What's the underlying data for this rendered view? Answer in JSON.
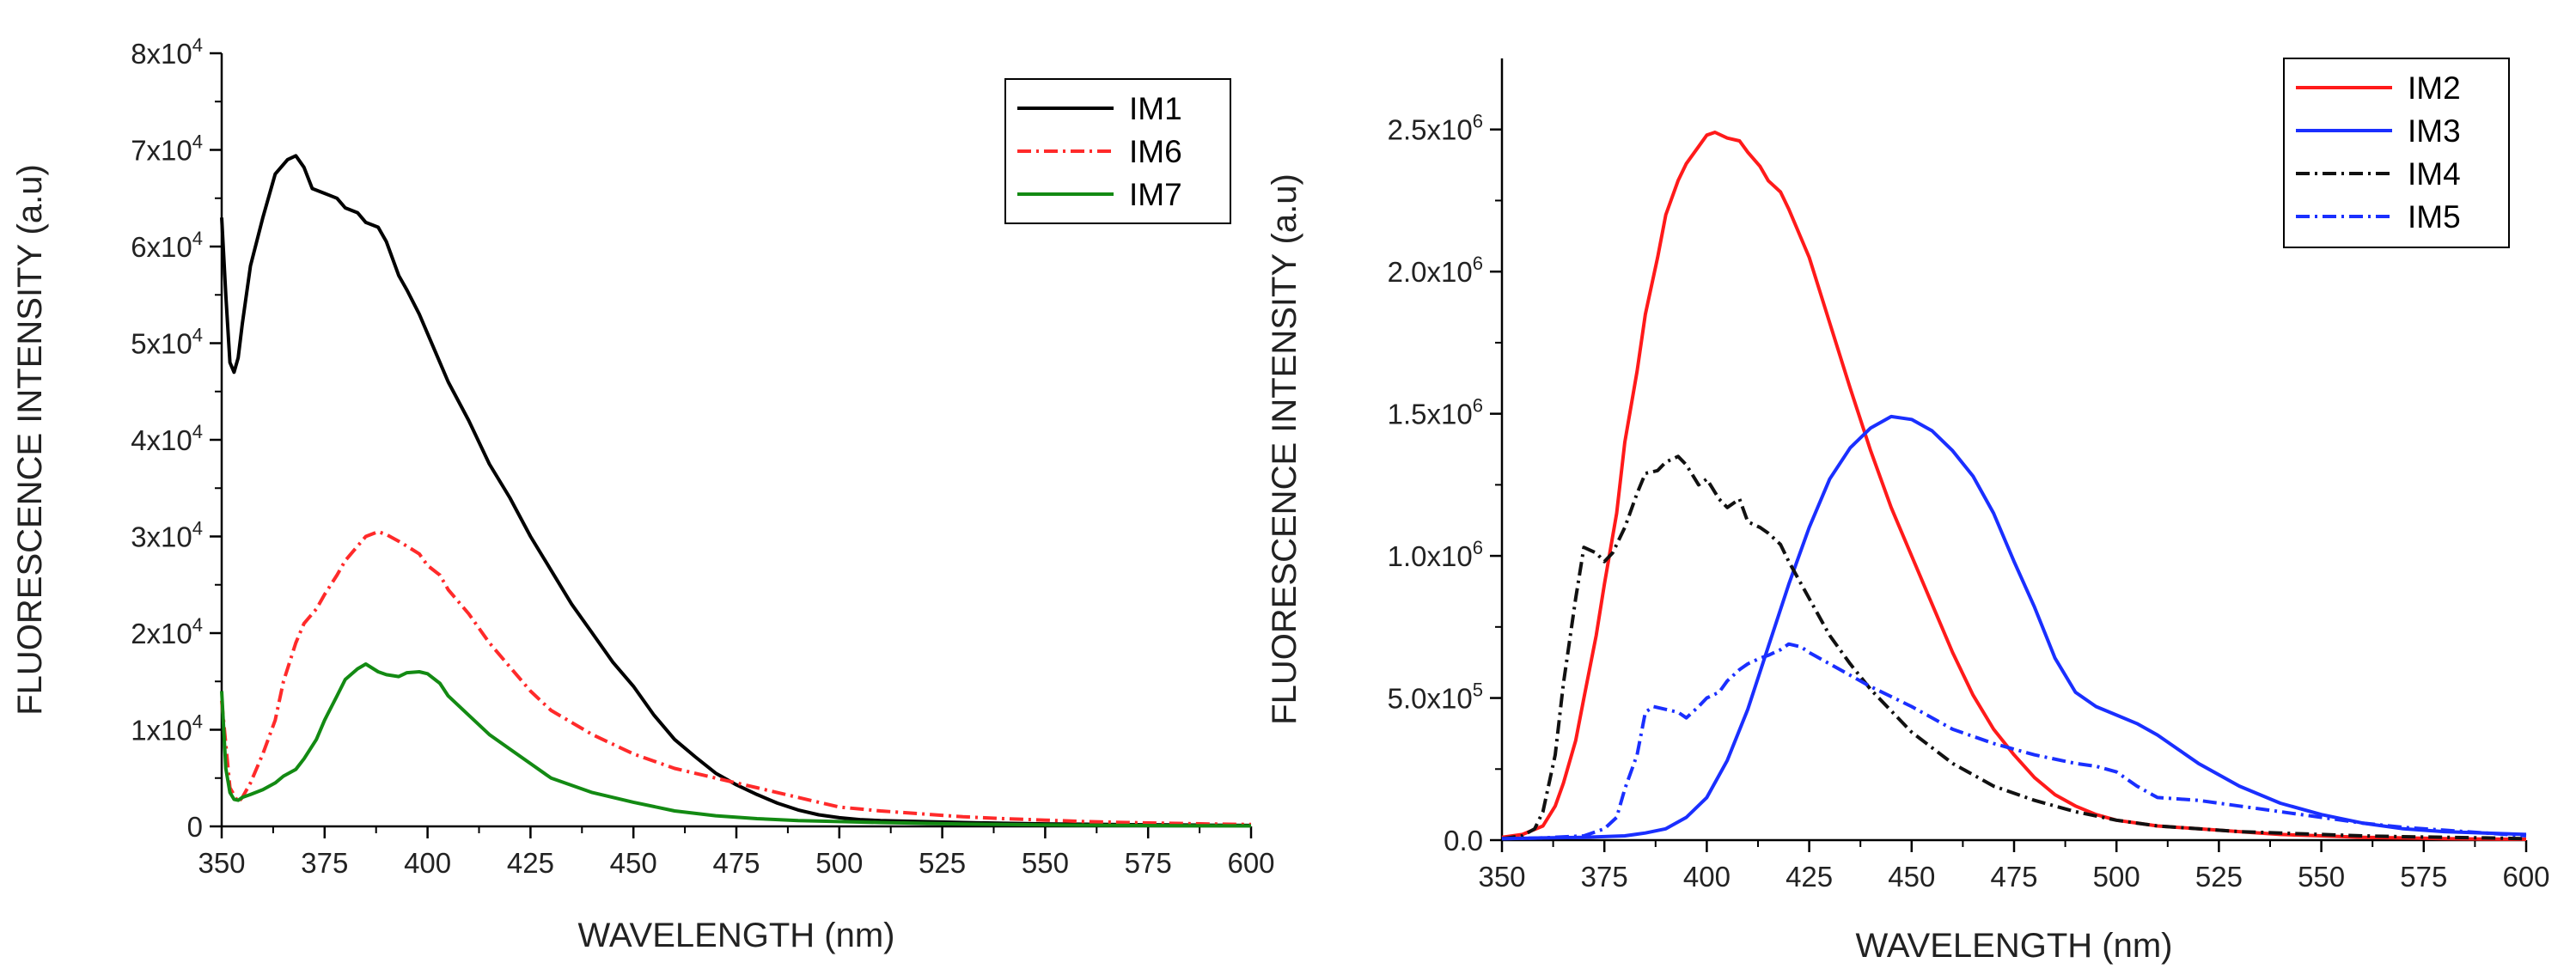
{
  "chart_data": [
    {
      "type": "line",
      "xlabel": "WAVELENGTH (nm)",
      "ylabel": "FLUORESCENCE INTENSITY (a.u)",
      "xlim": [
        350,
        600
      ],
      "ylim": [
        0,
        80000
      ],
      "xticks": [
        350,
        375,
        400,
        425,
        450,
        475,
        500,
        525,
        550,
        575,
        600
      ],
      "xtick_labels": [
        "350",
        "375",
        "400",
        "425",
        "450",
        "475",
        "500",
        "525",
        "550",
        "575",
        "600"
      ],
      "yticks": [
        {
          "value": 0,
          "base": "0",
          "exp": ""
        },
        {
          "value": 10000,
          "base": "1x10",
          "exp": "4"
        },
        {
          "value": 20000,
          "base": "2x10",
          "exp": "4"
        },
        {
          "value": 30000,
          "base": "3x10",
          "exp": "4"
        },
        {
          "value": 40000,
          "base": "4x10",
          "exp": "4"
        },
        {
          "value": 50000,
          "base": "5x10",
          "exp": "4"
        },
        {
          "value": 60000,
          "base": "6x10",
          "exp": "4"
        },
        {
          "value": 70000,
          "base": "7x10",
          "exp": "4"
        },
        {
          "value": 80000,
          "base": "8x10",
          "exp": "4"
        }
      ],
      "legend_position": "top-right",
      "series": [
        {
          "name": "IM1",
          "color": "#000000",
          "style": "solid",
          "x": [
            350,
            351,
            352,
            353,
            354,
            355,
            357,
            360,
            363,
            366,
            368,
            370,
            372,
            375,
            378,
            380,
            383,
            385,
            388,
            390,
            393,
            395,
            398,
            400,
            405,
            410,
            415,
            420,
            425,
            430,
            435,
            440,
            445,
            450,
            455,
            460,
            465,
            470,
            475,
            480,
            485,
            490,
            495,
            500,
            505,
            510,
            520,
            530,
            540,
            550,
            560,
            570,
            580,
            590,
            600
          ],
          "y": [
            63000,
            55000,
            48000,
            47000,
            48500,
            52000,
            58000,
            63000,
            67500,
            69000,
            69400,
            68200,
            66000,
            65500,
            65000,
            64000,
            63500,
            62500,
            62000,
            60500,
            57000,
            55500,
            53000,
            51000,
            46000,
            42000,
            37500,
            34000,
            30000,
            26500,
            23000,
            20000,
            17000,
            14500,
            11500,
            9000,
            7200,
            5500,
            4300,
            3300,
            2400,
            1700,
            1200,
            900,
            700,
            600,
            500,
            400,
            320,
            260,
            220,
            180,
            150,
            120,
            100
          ]
        },
        {
          "name": "IM6",
          "color": "#ff2a2a",
          "style": "dashdot",
          "x": [
            350,
            352,
            354,
            355,
            357,
            360,
            363,
            365,
            368,
            370,
            373,
            375,
            378,
            380,
            383,
            385,
            388,
            390,
            393,
            395,
            398,
            400,
            403,
            405,
            410,
            415,
            420,
            425,
            430,
            440,
            450,
            460,
            470,
            480,
            490,
            500,
            510,
            520,
            530,
            540,
            550,
            560,
            570,
            580,
            590,
            600
          ],
          "y": [
            13000,
            4000,
            2500,
            3000,
            4500,
            7500,
            11000,
            15000,
            19000,
            21000,
            22500,
            24000,
            26000,
            27500,
            29000,
            30000,
            30500,
            30200,
            29500,
            29000,
            28200,
            27000,
            26000,
            24500,
            22000,
            19000,
            16500,
            14000,
            12000,
            9500,
            7500,
            6000,
            5000,
            4000,
            3000,
            2000,
            1600,
            1300,
            1000,
            800,
            650,
            500,
            400,
            320,
            250,
            200
          ]
        },
        {
          "name": "IM7",
          "color": "#138a13",
          "style": "solid",
          "x": [
            350,
            351,
            352,
            353,
            354,
            355,
            357,
            360,
            363,
            365,
            368,
            370,
            373,
            375,
            378,
            380,
            383,
            385,
            388,
            390,
            393,
            395,
            398,
            400,
            403,
            405,
            410,
            415,
            420,
            425,
            430,
            440,
            450,
            460,
            470,
            480,
            490,
            500,
            510,
            520,
            530,
            540,
            550,
            560,
            570,
            580,
            590,
            600
          ],
          "y": [
            14000,
            6000,
            3500,
            2800,
            2700,
            3000,
            3300,
            3800,
            4500,
            5200,
            5900,
            7000,
            9000,
            11000,
            13500,
            15200,
            16300,
            16800,
            16000,
            15700,
            15500,
            15900,
            16000,
            15800,
            14800,
            13500,
            11500,
            9500,
            8000,
            6500,
            5000,
            3500,
            2500,
            1600,
            1100,
            800,
            600,
            500,
            400,
            320,
            250,
            200,
            160,
            120,
            100,
            80,
            60,
            50
          ]
        }
      ],
      "panel_label": "left"
    },
    {
      "type": "line",
      "xlabel": "WAVELENGTH (nm)",
      "ylabel": "FLUORESCENCE INTENSITY (a.u)",
      "xlim": [
        350,
        600
      ],
      "ylim": [
        0,
        2750000
      ],
      "xticks": [
        350,
        375,
        400,
        425,
        450,
        475,
        500,
        525,
        550,
        575,
        600
      ],
      "xtick_labels": [
        "350",
        "375",
        "400",
        "425",
        "450",
        "475",
        "500",
        "525",
        "550",
        "575",
        "600"
      ],
      "yticks": [
        {
          "value": 0,
          "base": "0.0",
          "exp": ""
        },
        {
          "value": 500000,
          "base": "5.0x10",
          "exp": "5"
        },
        {
          "value": 1000000,
          "base": "1.0x10",
          "exp": "6"
        },
        {
          "value": 1500000,
          "base": "1.5x10",
          "exp": "6"
        },
        {
          "value": 2000000,
          "base": "2.0x10",
          "exp": "6"
        },
        {
          "value": 2500000,
          "base": "2.5x10",
          "exp": "6"
        }
      ],
      "legend_position": "top-right",
      "series": [
        {
          "name": "IM2",
          "color": "#ff1a1a",
          "style": "solid",
          "x": [
            350,
            355,
            360,
            363,
            365,
            368,
            370,
            373,
            375,
            378,
            380,
            383,
            385,
            388,
            390,
            393,
            395,
            398,
            400,
            402,
            405,
            408,
            410,
            413,
            415,
            418,
            420,
            425,
            430,
            435,
            440,
            445,
            450,
            455,
            460,
            465,
            470,
            475,
            480,
            485,
            490,
            495,
            500,
            505,
            510,
            520,
            530,
            540,
            550,
            560,
            570,
            580,
            590,
            600
          ],
          "y": [
            10000,
            20000,
            50000,
            120000,
            200000,
            350000,
            500000,
            720000,
            900000,
            1150000,
            1400000,
            1650000,
            1850000,
            2050000,
            2200000,
            2320000,
            2380000,
            2440000,
            2480000,
            2490000,
            2470000,
            2460000,
            2420000,
            2370000,
            2320000,
            2280000,
            2220000,
            2050000,
            1820000,
            1590000,
            1370000,
            1170000,
            1000000,
            830000,
            660000,
            510000,
            390000,
            300000,
            220000,
            160000,
            120000,
            90000,
            70000,
            60000,
            50000,
            40000,
            30000,
            20000,
            15000,
            10000,
            8000,
            5000,
            4000,
            3000
          ]
        },
        {
          "name": "IM3",
          "color": "#1a2fff",
          "style": "solid",
          "x": [
            350,
            360,
            370,
            380,
            385,
            390,
            395,
            400,
            405,
            410,
            415,
            420,
            425,
            430,
            435,
            440,
            445,
            450,
            455,
            460,
            465,
            470,
            475,
            480,
            485,
            490,
            495,
            500,
            505,
            510,
            515,
            520,
            530,
            540,
            550,
            560,
            570,
            580,
            590,
            600
          ],
          "y": [
            5000,
            8000,
            10000,
            15000,
            25000,
            40000,
            80000,
            150000,
            280000,
            460000,
            680000,
            900000,
            1100000,
            1270000,
            1380000,
            1450000,
            1490000,
            1480000,
            1440000,
            1370000,
            1280000,
            1150000,
            980000,
            820000,
            640000,
            520000,
            470000,
            440000,
            410000,
            370000,
            320000,
            270000,
            190000,
            130000,
            90000,
            60000,
            40000,
            30000,
            25000,
            20000
          ]
        },
        {
          "name": "IM4",
          "color": "#111111",
          "style": "dashdot",
          "x": [
            350,
            355,
            358,
            360,
            363,
            365,
            368,
            370,
            373,
            375,
            377,
            380,
            383,
            385,
            388,
            390,
            393,
            395,
            398,
            400,
            403,
            405,
            408,
            410,
            413,
            415,
            418,
            420,
            425,
            430,
            435,
            440,
            450,
            460,
            470,
            480,
            490,
            500,
            510,
            520,
            530,
            540,
            550,
            560,
            570,
            580,
            590,
            600
          ],
          "y": [
            5000,
            15000,
            40000,
            100000,
            300000,
            550000,
            850000,
            1030000,
            1010000,
            980000,
            1010000,
            1100000,
            1220000,
            1290000,
            1300000,
            1330000,
            1350000,
            1320000,
            1250000,
            1270000,
            1200000,
            1170000,
            1200000,
            1120000,
            1100000,
            1080000,
            1040000,
            980000,
            850000,
            720000,
            620000,
            530000,
            380000,
            270000,
            190000,
            140000,
            100000,
            70000,
            50000,
            40000,
            30000,
            25000,
            20000,
            15000,
            12000,
            10000,
            8000,
            5000
          ]
        },
        {
          "name": "IM5",
          "color": "#1a2fff",
          "style": "dashdot",
          "x": [
            350,
            360,
            370,
            375,
            378,
            380,
            383,
            385,
            387,
            390,
            393,
            395,
            398,
            400,
            403,
            405,
            408,
            410,
            413,
            415,
            418,
            420,
            423,
            425,
            430,
            435,
            440,
            450,
            460,
            470,
            480,
            490,
            495,
            500,
            505,
            510,
            520,
            530,
            540,
            550,
            560,
            570,
            580,
            590,
            600
          ],
          "y": [
            5000,
            8000,
            15000,
            40000,
            80000,
            180000,
            300000,
            450000,
            470000,
            460000,
            450000,
            430000,
            470000,
            500000,
            520000,
            560000,
            600000,
            620000,
            640000,
            650000,
            670000,
            690000,
            680000,
            660000,
            620000,
            580000,
            540000,
            470000,
            390000,
            340000,
            300000,
            270000,
            260000,
            240000,
            190000,
            150000,
            140000,
            120000,
            100000,
            80000,
            60000,
            45000,
            35000,
            25000,
            15000
          ]
        }
      ],
      "panel_label": "right"
    }
  ]
}
